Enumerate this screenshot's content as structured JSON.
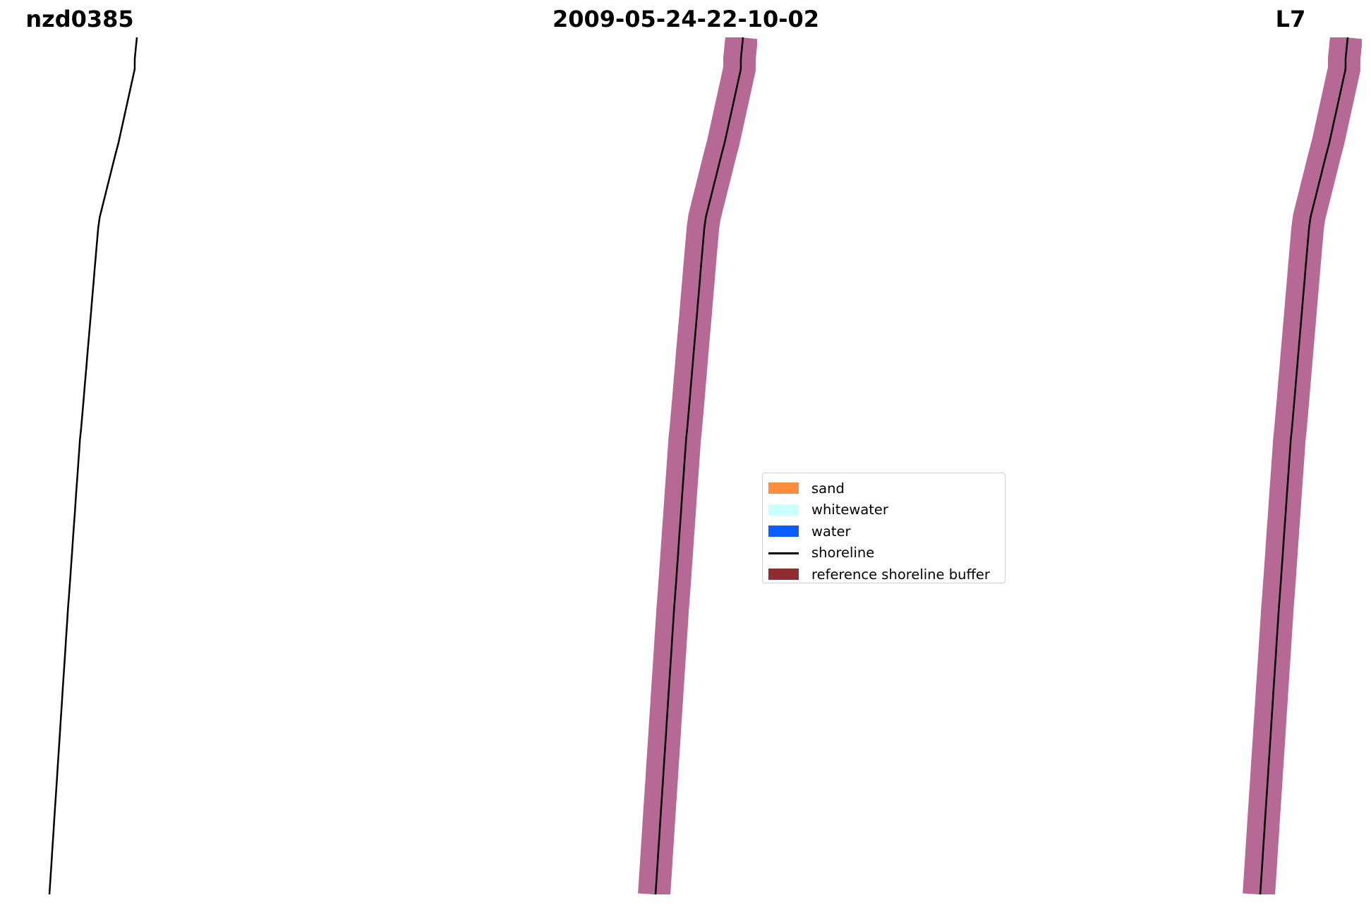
{
  "titles": {
    "left": "nzd0385",
    "center": "2009-05-24-22-10-02",
    "right": "L7"
  },
  "legend": {
    "items": [
      {
        "label": "sand",
        "color": "#fb8d3d"
      },
      {
        "label": "whitewater",
        "color": "#ccffff"
      },
      {
        "label": "water",
        "color": "#0a5dff"
      },
      {
        "label": "shoreline",
        "color": "#000000"
      },
      {
        "label": "reference shoreline buffer",
        "color": "#8f2d33"
      }
    ]
  },
  "colors": {
    "rgb_water": "#4f7d92",
    "rgb_land": "#3f5e4a",
    "classified_water": "#0a5dff",
    "index_water": "#7b7bea",
    "index_land": "#f01e1e",
    "buffer": "#9b2f6d",
    "stripe_gap": "#ffffff"
  }
}
